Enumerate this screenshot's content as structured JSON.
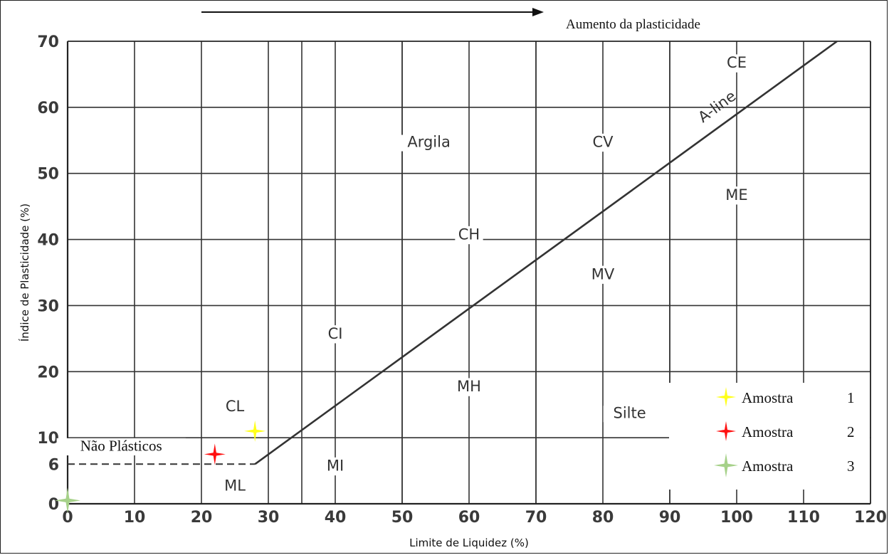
{
  "chart_data": {
    "type": "scatter",
    "title": "Aumento da plasticidade",
    "xlabel": "Limite de Liquidez (%)",
    "ylabel": "Índice de Plasticidade (%)",
    "xlim": [
      0,
      120
    ],
    "ylim": [
      0,
      70
    ],
    "x_ticks": [
      0,
      10,
      20,
      30,
      40,
      50,
      60,
      70,
      80,
      90,
      100,
      110,
      120
    ],
    "y_ticks": [
      0,
      6,
      10,
      20,
      30,
      40,
      50,
      60,
      70
    ],
    "vertical_boundaries": [
      35,
      50,
      70,
      90
    ],
    "a_line": {
      "name": "A-line",
      "x": [
        28,
        115
      ],
      "y": [
        6,
        70
      ]
    },
    "non_plastic_line": {
      "x": [
        0,
        28
      ],
      "y": [
        6,
        6
      ]
    },
    "zones": [
      {
        "label": "CE",
        "x": 100,
        "y": 66
      },
      {
        "label": "CV",
        "x": 80,
        "y": 54
      },
      {
        "label": "Argila",
        "x": 54,
        "y": 54
      },
      {
        "label": "ME",
        "x": 100,
        "y": 46
      },
      {
        "label": "CH",
        "x": 60,
        "y": 40
      },
      {
        "label": "MV",
        "x": 80,
        "y": 34
      },
      {
        "label": "CI",
        "x": 40,
        "y": 25
      },
      {
        "label": "MH",
        "x": 60,
        "y": 17
      },
      {
        "label": "CL",
        "x": 25,
        "y": 14
      },
      {
        "label": "Silte",
        "x": 84,
        "y": 13
      },
      {
        "label": "Não Plásticos",
        "x": 8,
        "y": 8
      },
      {
        "label": "MI",
        "x": 40,
        "y": 5
      },
      {
        "label": "ML",
        "x": 25,
        "y": 2
      }
    ],
    "series": [
      {
        "name": "Amostra 1",
        "color": "#ffff1a",
        "x": [
          28
        ],
        "y": [
          11
        ]
      },
      {
        "name": "Amostra 2",
        "color": "#ff1010",
        "x": [
          22
        ],
        "y": [
          7.5
        ]
      },
      {
        "name": "Amostra 3",
        "color": "#a6d189",
        "x": [
          0
        ],
        "y": [
          0.5
        ]
      }
    ],
    "legend": {
      "placement": "bottom-right",
      "items": [
        {
          "label": "Amostra",
          "number": "1"
        },
        {
          "label": "Amostra",
          "number": "2"
        },
        {
          "label": "Amostra",
          "number": "3"
        }
      ]
    },
    "grid": true
  }
}
